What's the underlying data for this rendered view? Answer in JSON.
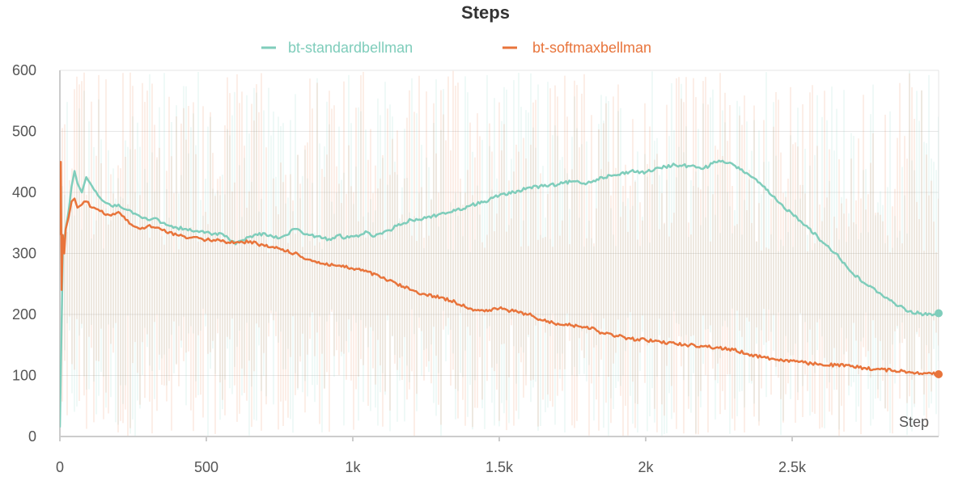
{
  "chart_data": {
    "type": "line",
    "title": "Steps",
    "xlabel": "Step",
    "ylabel": "",
    "xlim": [
      0,
      3000
    ],
    "ylim": [
      0,
      600
    ],
    "x_ticks": [
      {
        "value": 0,
        "label": "0"
      },
      {
        "value": 500,
        "label": "500"
      },
      {
        "value": 1000,
        "label": "1k"
      },
      {
        "value": 1500,
        "label": "1.5k"
      },
      {
        "value": 2000,
        "label": "2k"
      },
      {
        "value": 2500,
        "label": "2.5k"
      }
    ],
    "y_ticks": [
      {
        "value": 0,
        "label": "0"
      },
      {
        "value": 100,
        "label": "100"
      },
      {
        "value": 200,
        "label": "200"
      },
      {
        "value": 300,
        "label": "300"
      },
      {
        "value": 400,
        "label": "400"
      },
      {
        "value": 500,
        "label": "500"
      },
      {
        "value": 600,
        "label": "600"
      }
    ],
    "grid": true,
    "legend_position": "top-center",
    "series": [
      {
        "name": "bt-standardbellman",
        "color": "#7fcdbb",
        "x": [
          0,
          10,
          20,
          30,
          40,
          50,
          60,
          75,
          90,
          110,
          130,
          150,
          175,
          200,
          225,
          250,
          275,
          300,
          325,
          350,
          375,
          400,
          425,
          450,
          475,
          500,
          525,
          550,
          575,
          600,
          625,
          650,
          675,
          700,
          725,
          750,
          775,
          800,
          825,
          850,
          875,
          900,
          925,
          950,
          975,
          1000,
          1025,
          1050,
          1075,
          1100,
          1125,
          1150,
          1175,
          1200,
          1250,
          1300,
          1350,
          1400,
          1450,
          1500,
          1550,
          1600,
          1650,
          1700,
          1750,
          1800,
          1850,
          1900,
          1950,
          2000,
          2050,
          2100,
          2150,
          2200,
          2250,
          2275,
          2300,
          2350,
          2400,
          2450,
          2500,
          2550,
          2600,
          2650,
          2700,
          2750,
          2800,
          2850,
          2900,
          2950,
          3000
        ],
        "y": [
          15,
          300,
          340,
          370,
          410,
          435,
          415,
          400,
          425,
          410,
          395,
          385,
          378,
          380,
          372,
          365,
          360,
          355,
          358,
          350,
          345,
          342,
          340,
          337,
          335,
          335,
          332,
          333,
          325,
          315,
          322,
          328,
          330,
          333,
          328,
          325,
          330,
          340,
          335,
          330,
          328,
          325,
          322,
          330,
          325,
          328,
          330,
          335,
          328,
          332,
          338,
          345,
          350,
          355,
          358,
          365,
          370,
          378,
          385,
          395,
          400,
          408,
          410,
          413,
          418,
          415,
          425,
          428,
          435,
          433,
          440,
          445,
          443,
          440,
          452,
          448,
          445,
          430,
          410,
          385,
          365,
          345,
          320,
          300,
          270,
          250,
          235,
          218,
          205,
          200,
          202
        ]
      },
      {
        "name": "bt-softmaxbellman",
        "color": "#e8743b",
        "x": [
          0,
          3,
          6,
          10,
          15,
          20,
          30,
          40,
          50,
          60,
          75,
          90,
          110,
          130,
          150,
          175,
          200,
          225,
          250,
          275,
          300,
          325,
          350,
          375,
          400,
          425,
          450,
          475,
          500,
          525,
          550,
          575,
          600,
          625,
          650,
          675,
          700,
          750,
          800,
          850,
          900,
          950,
          1000,
          1050,
          1100,
          1150,
          1200,
          1250,
          1300,
          1350,
          1400,
          1450,
          1500,
          1550,
          1600,
          1650,
          1700,
          1750,
          1800,
          1850,
          1900,
          1950,
          2000,
          2050,
          2100,
          2150,
          2200,
          2250,
          2300,
          2350,
          2400,
          2450,
          2500,
          2550,
          2600,
          2650,
          2700,
          2750,
          2800,
          2850,
          2900,
          2950,
          3000
        ],
        "y": [
          330,
          450,
          240,
          330,
          300,
          340,
          360,
          385,
          390,
          375,
          380,
          385,
          375,
          372,
          365,
          362,
          368,
          355,
          345,
          340,
          345,
          342,
          338,
          335,
          330,
          328,
          326,
          325,
          322,
          322,
          320,
          318,
          318,
          318,
          320,
          315,
          312,
          308,
          300,
          290,
          283,
          280,
          275,
          270,
          260,
          250,
          240,
          232,
          228,
          220,
          210,
          205,
          210,
          205,
          200,
          190,
          185,
          182,
          180,
          170,
          165,
          160,
          158,
          155,
          152,
          150,
          148,
          145,
          142,
          135,
          130,
          126,
          124,
          120,
          118,
          117,
          115,
          112,
          110,
          108,
          106,
          104,
          102
        ]
      }
    ]
  }
}
